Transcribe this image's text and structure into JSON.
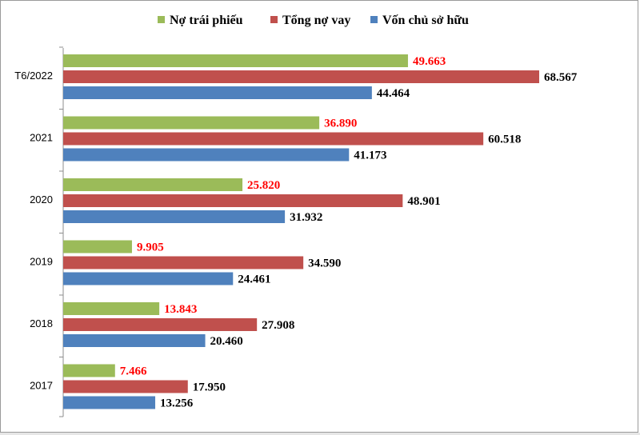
{
  "chart_data": {
    "type": "bar",
    "orientation": "horizontal",
    "categories": [
      "T6/2022",
      "2021",
      "2020",
      "2019",
      "2018",
      "2017"
    ],
    "series": [
      {
        "name": "Nợ trái phiếu",
        "color": "#9bbb59",
        "label_color": "#ff0000",
        "values": [
          49.663,
          36.89,
          25.82,
          9.905,
          13.843,
          7.466
        ],
        "labels": [
          "49.663",
          "36.890",
          "25.820",
          "9.905",
          "13.843",
          "7.466"
        ]
      },
      {
        "name": "Tổng nợ vay",
        "color": "#c0504d",
        "label_color": "#000000",
        "values": [
          68.567,
          60.518,
          48.901,
          34.59,
          27.908,
          17.95
        ],
        "labels": [
          "68.567",
          "60.518",
          "48.901",
          "34.590",
          "27.908",
          "17.950"
        ]
      },
      {
        "name": "Vốn chủ sở hữu",
        "color": "#4f81bd",
        "label_color": "#000000",
        "values": [
          44.464,
          41.173,
          31.932,
          24.461,
          20.46,
          13.256
        ],
        "labels": [
          "44.464",
          "41.173",
          "31.932",
          "24.461",
          "20.460",
          "13.256"
        ]
      }
    ],
    "xlim": [
      0,
      80
    ],
    "grid": false,
    "legend_position": "top"
  }
}
